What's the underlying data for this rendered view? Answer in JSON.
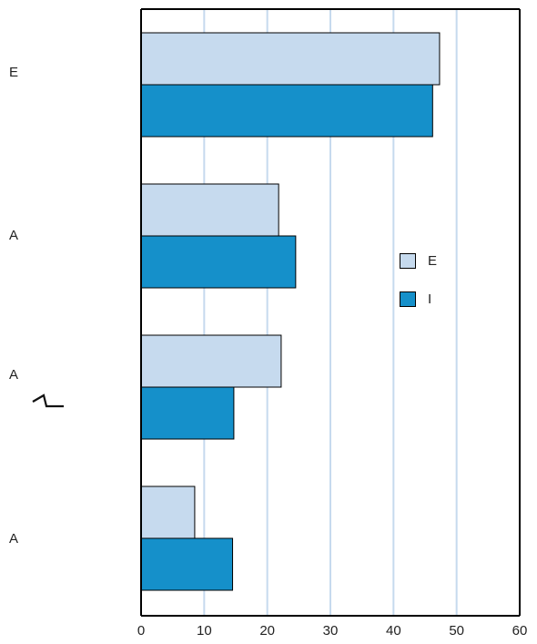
{
  "chart_data": {
    "type": "bar",
    "orientation": "horizontal",
    "categories": [
      "E",
      "A",
      "A",
      "A"
    ],
    "series": [
      {
        "name": "E",
        "color": "#c6daee",
        "values": [
          47.3,
          21.8,
          22.2,
          8.5
        ]
      },
      {
        "name": "I",
        "color": "#1590ca",
        "values": [
          46.2,
          24.5,
          14.7,
          14.5
        ]
      }
    ],
    "xlim": [
      0,
      60
    ],
    "x_ticks": [
      "0",
      "10",
      "20",
      "30",
      "40",
      "50",
      "60"
    ],
    "grid": "vertical",
    "grid_color": "#c6daee",
    "legend_position": "right-center"
  }
}
